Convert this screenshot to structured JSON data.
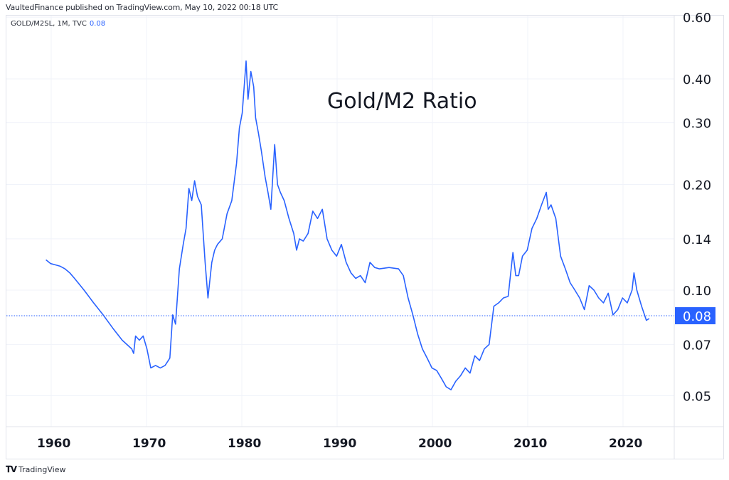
{
  "header": {
    "published_by": "VaultedFinance published on TradingView.com, May 10, 2022 00:18 UTC"
  },
  "legend": {
    "symbol": "GOLD/M2SL, 1M, TVC",
    "last_value": "0.08"
  },
  "footer": {
    "logo_icon": "tradingview-logo-icon",
    "brand": "TradingView"
  },
  "colors": {
    "line": "#2962ff",
    "last_price_badge": "#2962ff",
    "grid": "#f0f3fa",
    "axis_border": "#e0e3eb",
    "text": "#131722"
  },
  "price_axis": {
    "labels": [
      "0.60",
      "0.40",
      "0.30",
      "0.20",
      "0.14",
      "0.10",
      "0.07",
      "0.05"
    ],
    "last_price_label": "0.08"
  },
  "time_axis": {
    "labels": [
      "1960",
      "1970",
      "1980",
      "1990",
      "2000",
      "2010",
      "2020"
    ]
  },
  "chart_data": {
    "type": "line",
    "title": "Gold/M2 Ratio",
    "subtitle": "GOLD/M2SL, 1M, TVC",
    "xlabel": "",
    "ylabel": "",
    "y_scale": "log",
    "ylim": [
      0.045,
      0.6
    ],
    "xlim": [
      1956,
      2028
    ],
    "grid": true,
    "legend_position": "top-left",
    "y_ticks": [
      0.05,
      0.07,
      0.1,
      0.14,
      0.2,
      0.3,
      0.4,
      0.6
    ],
    "x_ticks": [
      1960,
      1970,
      1980,
      1990,
      2000,
      2010,
      2020
    ],
    "last_value": 0.08,
    "series": [
      {
        "name": "GOLD/M2SL",
        "x": [
          1959.0,
          1959.5,
          1960.0,
          1960.5,
          1961.0,
          1961.5,
          1962.0,
          1963.0,
          1964.0,
          1965.0,
          1966.0,
          1967.0,
          1968.0,
          1968.2,
          1968.4,
          1968.8,
          1969.2,
          1969.6,
          1970.0,
          1970.5,
          1971.0,
          1971.5,
          1972.0,
          1972.3,
          1972.6,
          1973.0,
          1973.4,
          1973.7,
          1974.0,
          1974.3,
          1974.6,
          1974.9,
          1975.3,
          1975.7,
          1976.0,
          1976.4,
          1976.7,
          1977.0,
          1977.5,
          1978.0,
          1978.5,
          1979.0,
          1979.3,
          1979.6,
          1980.0,
          1980.2,
          1980.5,
          1980.8,
          1981.0,
          1981.3,
          1981.6,
          1982.0,
          1982.3,
          1982.6,
          1983.0,
          1983.3,
          1983.6,
          1984.0,
          1984.5,
          1985.0,
          1985.3,
          1985.6,
          1986.0,
          1986.5,
          1987.0,
          1987.5,
          1988.0,
          1988.5,
          1989.0,
          1989.5,
          1990.0,
          1990.5,
          1991.0,
          1991.5,
          1992.0,
          1992.5,
          1993.0,
          1993.5,
          1994.0,
          1995.0,
          1996.0,
          1996.5,
          1997.0,
          1997.5,
          1998.0,
          1998.5,
          1999.0,
          1999.5,
          2000.0,
          2000.5,
          2001.0,
          2001.5,
          2002.0,
          2002.5,
          2003.0,
          2003.5,
          2004.0,
          2004.5,
          2005.0,
          2005.5,
          2006.0,
          2006.5,
          2007.0,
          2007.5,
          2008.0,
          2008.3,
          2008.6,
          2009.0,
          2009.5,
          2010.0,
          2010.5,
          2011.0,
          2011.5,
          2011.7,
          2012.0,
          2012.5,
          2013.0,
          2013.5,
          2014.0,
          2014.5,
          2015.0,
          2015.5,
          2016.0,
          2016.5,
          2017.0,
          2017.5,
          2018.0,
          2018.5,
          2019.0,
          2019.5,
          2020.0,
          2020.5,
          2020.7,
          2021.0,
          2021.5,
          2022.0,
          2022.3
        ],
        "values": [
          0.122,
          0.119,
          0.118,
          0.117,
          0.115,
          0.112,
          0.108,
          0.1,
          0.092,
          0.085,
          0.078,
          0.072,
          0.068,
          0.066,
          0.074,
          0.072,
          0.074,
          0.068,
          0.06,
          0.061,
          0.06,
          0.061,
          0.064,
          0.085,
          0.08,
          0.115,
          0.135,
          0.15,
          0.195,
          0.18,
          0.205,
          0.185,
          0.175,
          0.12,
          0.095,
          0.12,
          0.13,
          0.135,
          0.14,
          0.165,
          0.18,
          0.23,
          0.29,
          0.32,
          0.45,
          0.35,
          0.42,
          0.38,
          0.31,
          0.28,
          0.25,
          0.21,
          0.19,
          0.17,
          0.26,
          0.2,
          0.19,
          0.18,
          0.16,
          0.145,
          0.13,
          0.14,
          0.138,
          0.145,
          0.168,
          0.16,
          0.17,
          0.14,
          0.13,
          0.125,
          0.135,
          0.12,
          0.112,
          0.108,
          0.11,
          0.105,
          0.12,
          0.116,
          0.115,
          0.116,
          0.115,
          0.11,
          0.095,
          0.085,
          0.075,
          0.068,
          0.064,
          0.06,
          0.059,
          0.056,
          0.053,
          0.052,
          0.055,
          0.057,
          0.06,
          0.058,
          0.065,
          0.063,
          0.068,
          0.07,
          0.09,
          0.092,
          0.095,
          0.096,
          0.128,
          0.11,
          0.11,
          0.125,
          0.13,
          0.15,
          0.16,
          0.175,
          0.19,
          0.17,
          0.175,
          0.16,
          0.125,
          0.115,
          0.105,
          0.1,
          0.095,
          0.088,
          0.103,
          0.1,
          0.095,
          0.092,
          0.098,
          0.085,
          0.088,
          0.095,
          0.092,
          0.1,
          0.112,
          0.1,
          0.09,
          0.082,
          0.083
        ]
      }
    ],
    "annotations": [
      {
        "text": "Gold/M2 Ratio",
        "x": 1996,
        "y": 0.36
      }
    ]
  }
}
